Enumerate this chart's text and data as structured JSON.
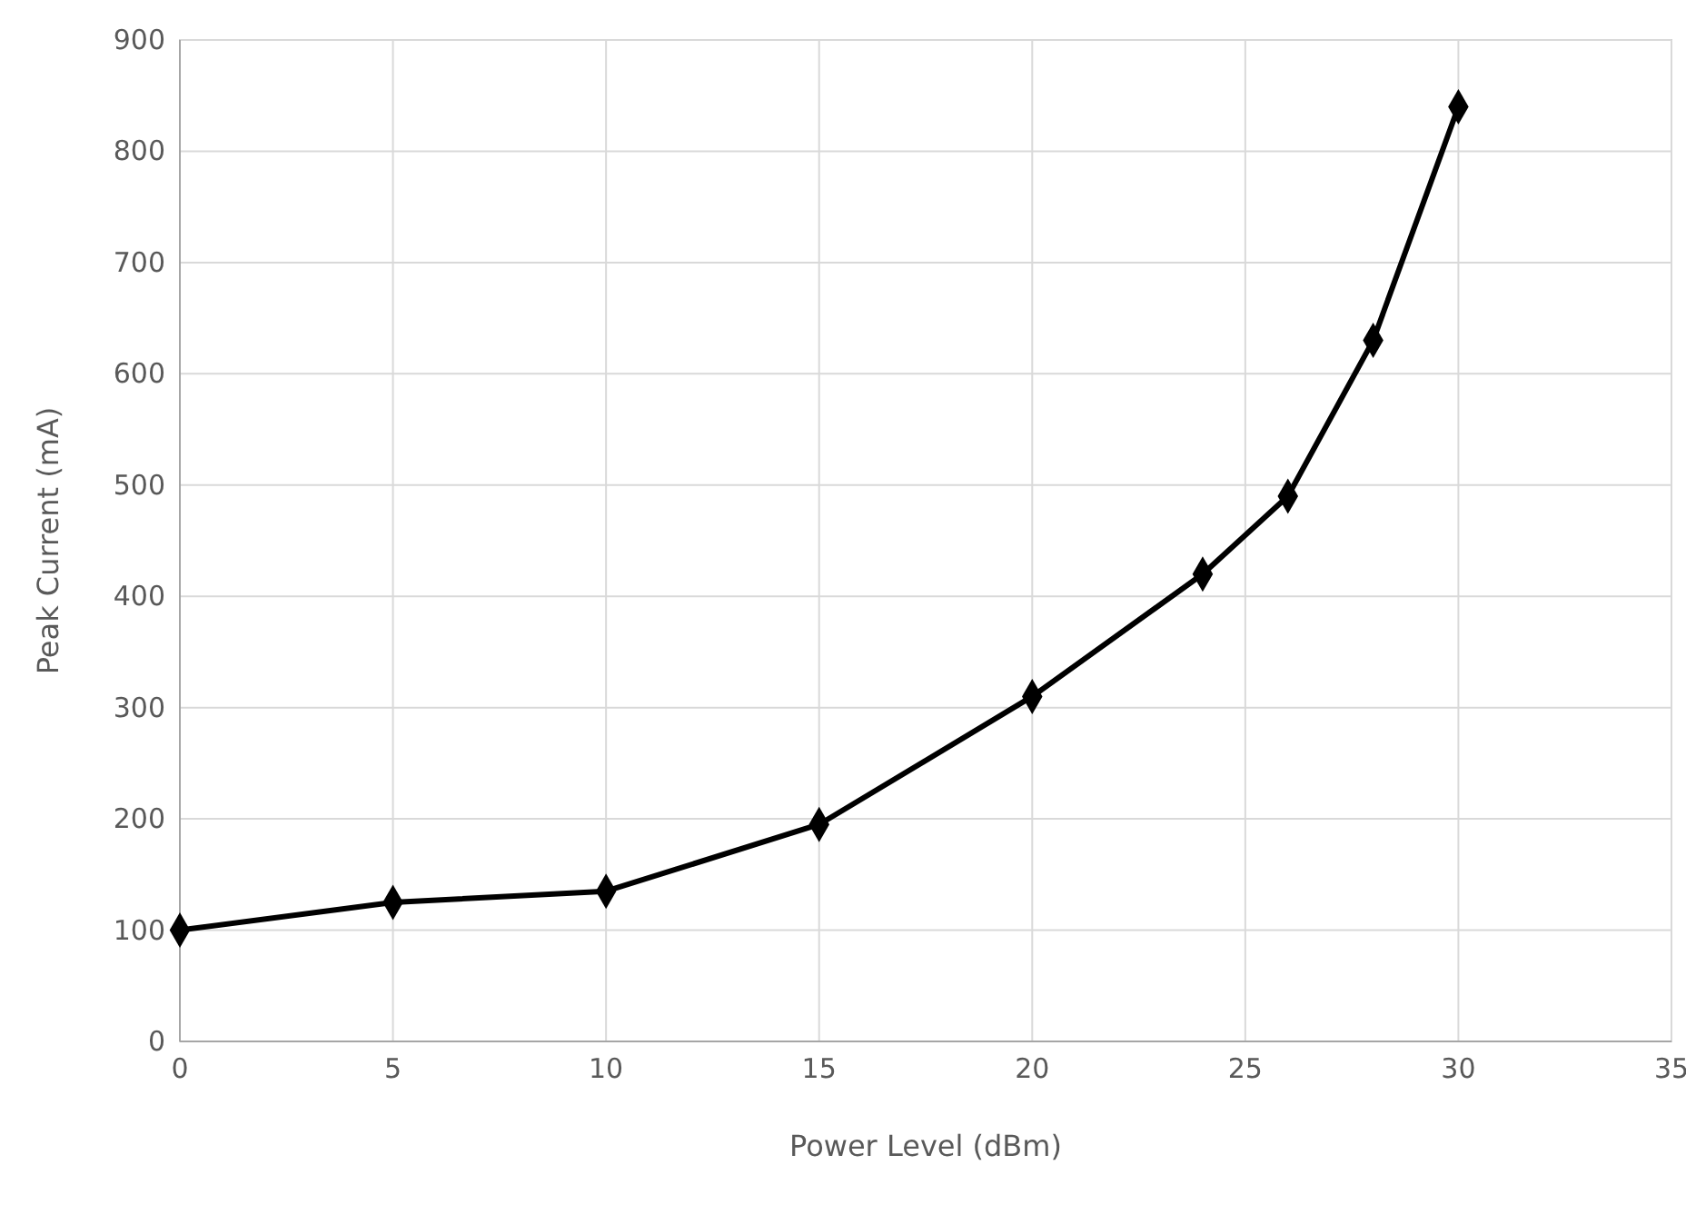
{
  "chart_data": {
    "type": "line",
    "xlabel": "Power Level (dBm)",
    "ylabel": "Peak Current (mA)",
    "x": [
      0,
      5,
      10,
      15,
      20,
      24,
      26,
      28,
      30
    ],
    "series": [
      {
        "color": "#000000",
        "values": [
          100,
          125,
          135,
          195,
          310,
          420,
          490,
          630,
          840
        ]
      }
    ],
    "xlim": [
      0,
      35
    ],
    "xticks": [
      0,
      5,
      10,
      15,
      20,
      25,
      30,
      35
    ],
    "ylim": [
      0,
      900
    ],
    "yticks": [
      0,
      100,
      200,
      300,
      400,
      500,
      600,
      700,
      800,
      900
    ],
    "grid": true,
    "marker": "diamond",
    "line_style": "solid"
  }
}
